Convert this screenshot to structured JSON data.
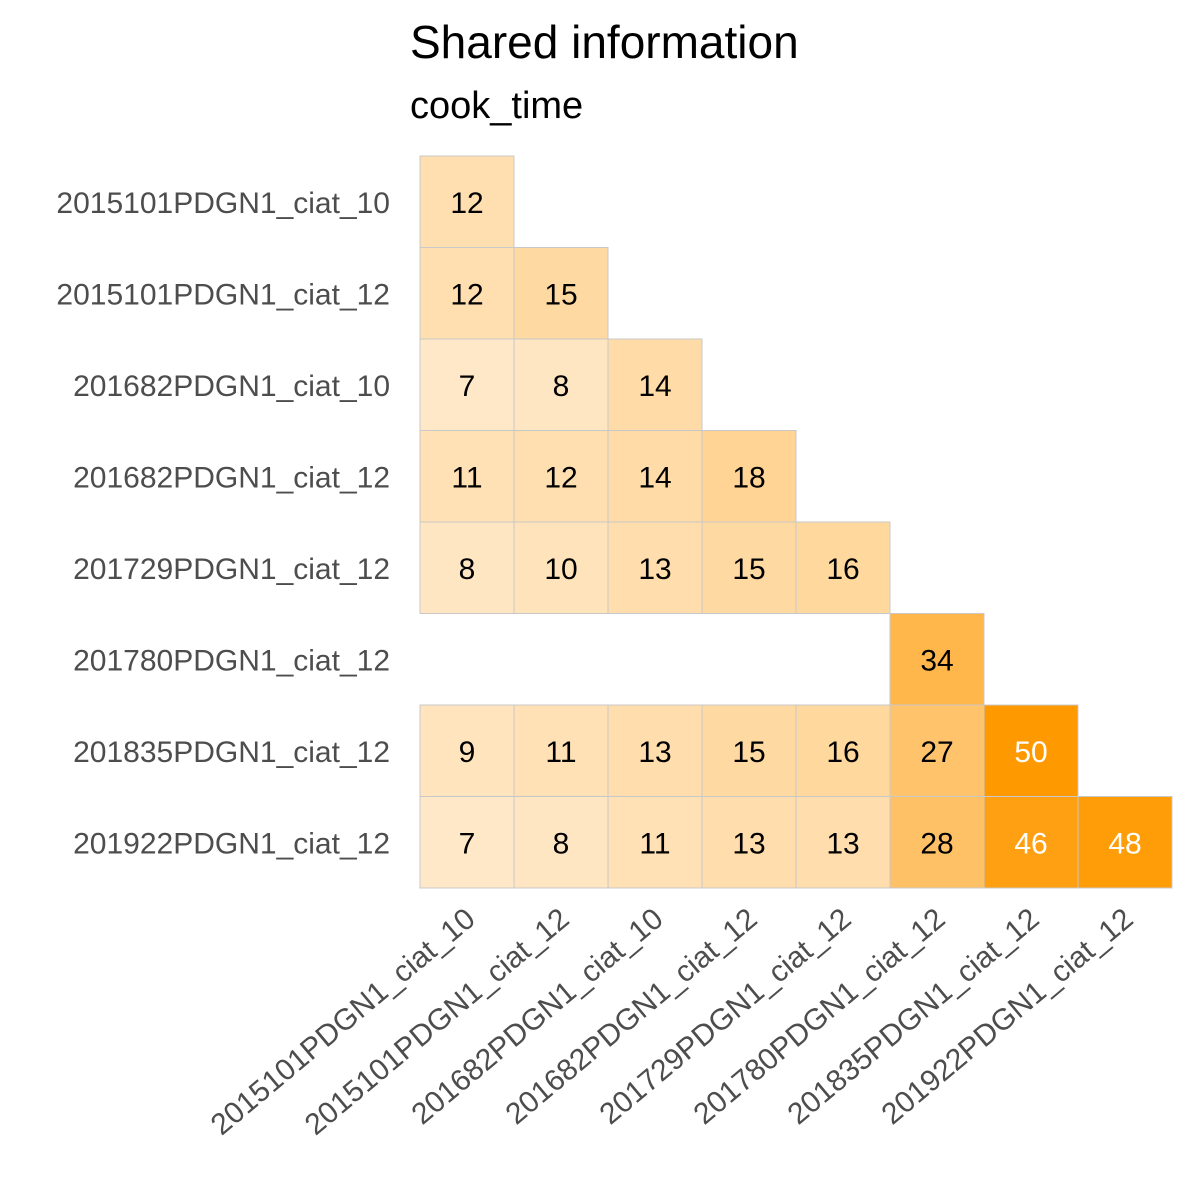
{
  "chart_data": {
    "type": "heatmap",
    "title": "Shared information",
    "subtitle": "cook_time",
    "rows": [
      "2015101PDGN1_ciat_10",
      "2015101PDGN1_ciat_12",
      "201682PDGN1_ciat_10",
      "201682PDGN1_ciat_12",
      "201729PDGN1_ciat_12",
      "201780PDGN1_ciat_12",
      "201835PDGN1_ciat_12",
      "201922PDGN1_ciat_12"
    ],
    "columns": [
      "2015101PDGN1_ciat_10",
      "2015101PDGN1_ciat_12",
      "201682PDGN1_ciat_10",
      "201682PDGN1_ciat_12",
      "201729PDGN1_ciat_12",
      "201780PDGN1_ciat_12",
      "201835PDGN1_ciat_12",
      "201922PDGN1_ciat_12"
    ],
    "values": [
      [
        12,
        null,
        null,
        null,
        null,
        null,
        null,
        null
      ],
      [
        12,
        15,
        null,
        null,
        null,
        null,
        null,
        null
      ],
      [
        7,
        8,
        14,
        null,
        null,
        null,
        null,
        null
      ],
      [
        11,
        12,
        14,
        18,
        null,
        null,
        null,
        null
      ],
      [
        8,
        10,
        13,
        15,
        16,
        null,
        null,
        null
      ],
      [
        null,
        null,
        null,
        null,
        null,
        34,
        null,
        null
      ],
      [
        9,
        11,
        13,
        15,
        16,
        27,
        50,
        null
      ],
      [
        7,
        8,
        11,
        13,
        13,
        28,
        46,
        48
      ]
    ],
    "color_scale": {
      "low": "#fff5e8",
      "high": "#ff9900",
      "min": 0,
      "max": 50
    },
    "grid": false,
    "legend": "none"
  }
}
